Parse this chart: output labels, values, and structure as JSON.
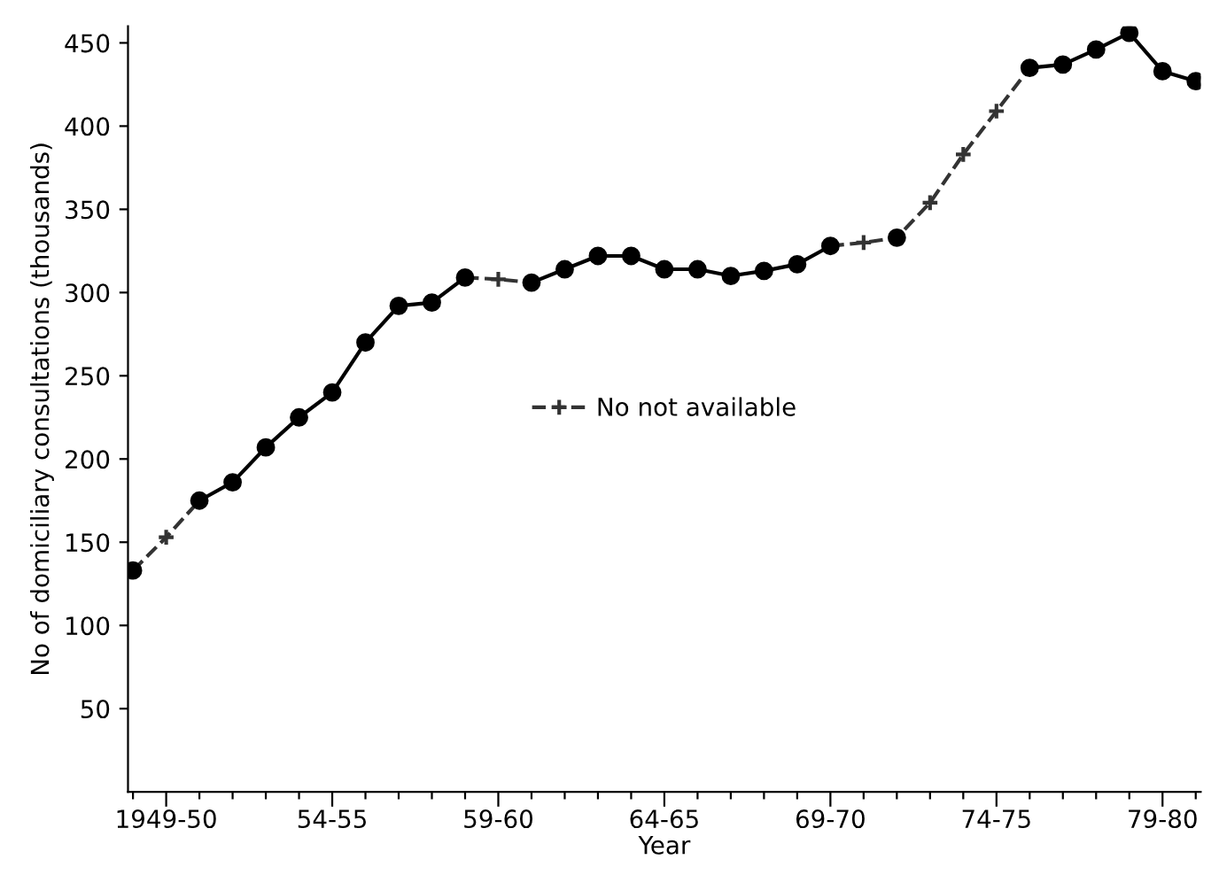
{
  "chart_data": {
    "type": "line",
    "xlabel": "Year",
    "ylabel": "No of domiciliary consultations (thousands)",
    "categories": [
      null,
      "1949-50",
      null,
      null,
      null,
      null,
      "54-55",
      null,
      null,
      null,
      null,
      "59-60",
      null,
      null,
      null,
      null,
      "64-65",
      null,
      null,
      null,
      null,
      "69-70",
      null,
      null,
      null,
      null,
      "74-75",
      null,
      null,
      null,
      null,
      "79-80",
      null
    ],
    "series": [
      {
        "name": "No not available",
        "color": "#333333",
        "marker": "cross",
        "line_style": "dashed",
        "values": [
          133,
          153,
          175,
          null,
          null,
          null,
          null,
          null,
          null,
          null,
          309,
          308,
          306,
          null,
          null,
          null,
          null,
          null,
          null,
          null,
          null,
          328,
          330,
          333,
          354,
          383,
          409,
          435,
          null,
          null,
          null,
          null,
          null
        ]
      },
      {
        "color": "#000000",
        "marker": "circle",
        "line_style": "solid",
        "values": [
          133,
          null,
          175,
          186,
          207,
          225,
          240,
          270,
          292,
          294,
          309,
          null,
          306,
          314,
          322,
          322,
          314,
          314,
          310,
          313,
          317,
          328,
          null,
          333,
          null,
          null,
          null,
          435,
          437,
          446,
          456,
          433,
          427
        ]
      }
    ],
    "ylim": [
      0,
      460
    ],
    "yticks": [
      50,
      100,
      150,
      200,
      250,
      300,
      350,
      400,
      450
    ],
    "grid": false,
    "legend": "center"
  }
}
